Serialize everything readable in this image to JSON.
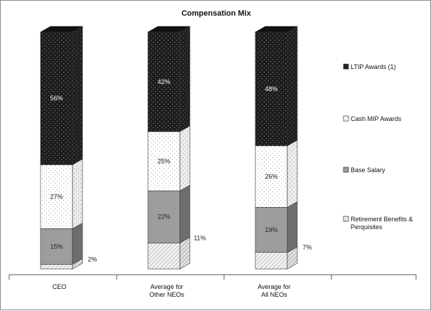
{
  "chart_data": {
    "type": "bar",
    "stacked": true,
    "title": "Compensation Mix",
    "categories": [
      [
        "CEO"
      ],
      [
        "Average for",
        "Other NEOs"
      ],
      [
        "Average for",
        "All NEOs"
      ]
    ],
    "series": [
      {
        "name": "Retirement Benefits & Perquisites",
        "legend_lines": [
          "Retirement Benefits &",
          "Perquisites"
        ],
        "values": [
          2,
          11,
          7
        ],
        "labels": [
          "2%",
          "11%",
          "7%"
        ],
        "color": "#e6e6e6",
        "pattern": "hatch"
      },
      {
        "name": "Base Salary",
        "legend_lines": [
          "Base Salary"
        ],
        "values": [
          15,
          22,
          19
        ],
        "labels": [
          "15%",
          "22%",
          "19%"
        ],
        "color": "#9d9d9d",
        "pattern": "solid"
      },
      {
        "name": "Cash MIP Awards",
        "legend_lines": [
          "Cash MIP Awards"
        ],
        "values": [
          27,
          25,
          26
        ],
        "labels": [
          "27%",
          "25%",
          "26%"
        ],
        "color": "#ffffff",
        "pattern": "dots-dark"
      },
      {
        "name": "LTIP Awards (1)",
        "legend_lines": [
          "LTIP Awards (1)"
        ],
        "values": [
          56,
          42,
          48
        ],
        "labels": [
          "56%",
          "42%",
          "48%"
        ],
        "color": "#1e1e1e",
        "pattern": "dots-light"
      }
    ],
    "ylim": [
      0,
      100
    ],
    "legend_position": "right"
  }
}
